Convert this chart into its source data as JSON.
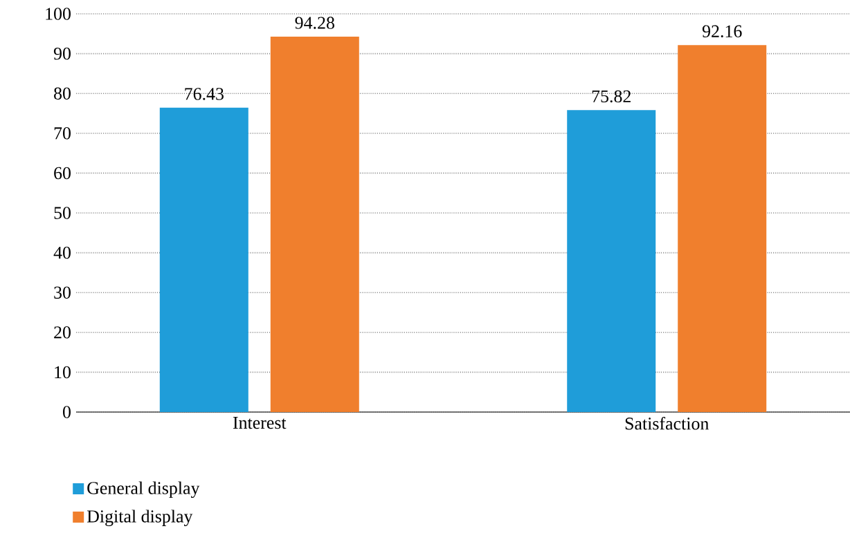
{
  "chart_data": {
    "type": "bar",
    "categories": [
      "Interest",
      "Satisfaction"
    ],
    "series": [
      {
        "name": "General display",
        "color": "#1f9dd9",
        "values": [
          76.43,
          75.82
        ]
      },
      {
        "name": "Digital display",
        "color": "#f07f2d",
        "values": [
          94.28,
          92.16
        ]
      }
    ],
    "ylim": [
      0,
      100
    ],
    "yticks": [
      0,
      10,
      20,
      30,
      40,
      50,
      60,
      70,
      80,
      90,
      100
    ],
    "grid": "y",
    "legend": "bottom left",
    "data_labels": true
  }
}
